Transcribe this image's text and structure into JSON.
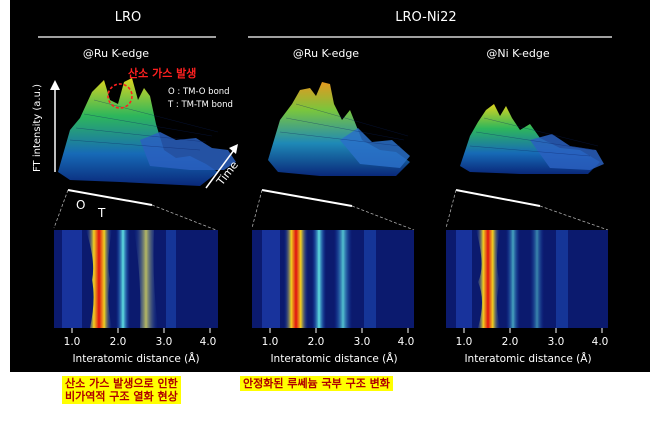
{
  "groups": {
    "left": "LRO",
    "right": "LRO-Ni22"
  },
  "panels": [
    {
      "edge_label": "@Ru K-edge"
    },
    {
      "edge_label": "@Ru K-edge"
    },
    {
      "edge_label": "@Ni K-edge"
    }
  ],
  "annotations": {
    "gas_release": "산소 가스 발생",
    "legend_o": "O : TM-O bond",
    "legend_t": "T : TM-TM bond",
    "peak_o": "O",
    "peak_t": "T",
    "time_axis": "Time",
    "y_axis": "FT intensity (a.u.)"
  },
  "x_axis": {
    "label": "Interatomic distance (Å)",
    "ticks": [
      "1.0",
      "2.0",
      "3.0",
      "4.0"
    ]
  },
  "captions": {
    "left": [
      "산소 가스 발생으로 인한",
      "비가역적 구조 열화 현상"
    ],
    "right": "안정화된 루쎄늄 국부 구조 변화"
  },
  "colors": {
    "background": "#000000",
    "caption_bg": "#ffff00",
    "caption_text": "#b00000",
    "annotation_red": "#ff2020",
    "heatmap_low": "#0b1a6e",
    "heatmap_high": "#e01010"
  }
}
